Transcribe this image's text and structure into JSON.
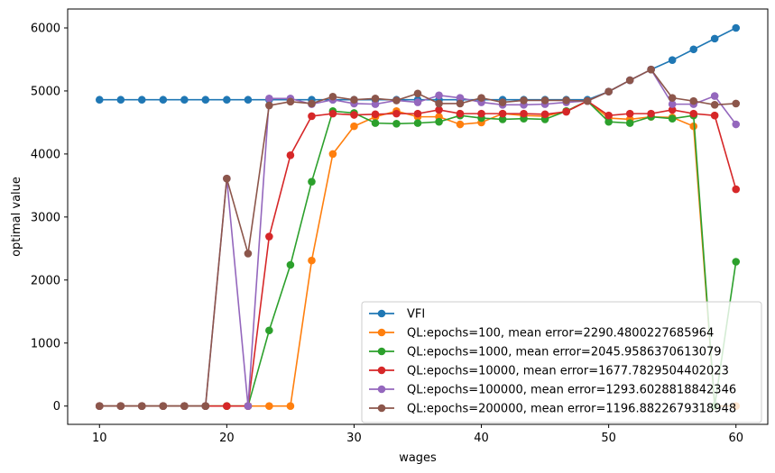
{
  "chart_data": {
    "type": "line",
    "title": "",
    "xlabel": "wages",
    "ylabel": "optimal value",
    "xlim": [
      7.5,
      62.5
    ],
    "ylim": [
      -290,
      6300
    ],
    "xticks": [
      10,
      20,
      30,
      40,
      50,
      60
    ],
    "xtick_labels": [
      "10",
      "20",
      "30",
      "40",
      "50",
      "60"
    ],
    "yticks": [
      0,
      1000,
      2000,
      3000,
      4000,
      5000,
      6000
    ],
    "ytick_labels": [
      "0",
      "1000",
      "2000",
      "3000",
      "4000",
      "5000",
      "6000"
    ],
    "grid": false,
    "legend_position": "lower-right",
    "x": [
      10.0,
      11.67,
      13.33,
      15.0,
      16.67,
      18.33,
      20.0,
      21.67,
      23.33,
      25.0,
      26.67,
      28.33,
      30.0,
      31.67,
      33.33,
      35.0,
      36.67,
      38.33,
      40.0,
      41.67,
      43.33,
      45.0,
      46.67,
      48.33,
      50.0,
      51.67,
      53.33,
      55.0,
      56.67,
      58.33,
      60.0
    ],
    "series": [
      {
        "name": "VFI",
        "color": "#1f77b4",
        "values": [
          4860,
          4860,
          4860,
          4860,
          4860,
          4860,
          4860,
          4860,
          4860,
          4860,
          4860,
          4860,
          4860,
          4860,
          4860,
          4860,
          4860,
          4860,
          4860,
          4860,
          4860,
          4860,
          4860,
          4860,
          4990,
          5170,
          5340,
          5490,
          5660,
          5830,
          6000
        ]
      },
      {
        "name": "QL:epochs=100, mean error=2290.4800227685964",
        "color": "#ff7f0e",
        "values": [
          0,
          0,
          0,
          0,
          0,
          0,
          0,
          0,
          0,
          0,
          2310,
          4000,
          4440,
          4590,
          4680,
          4590,
          4590,
          4470,
          4500,
          4640,
          4610,
          4600,
          4680,
          4840,
          4570,
          4550,
          4590,
          4580,
          4440,
          0,
          0
        ]
      },
      {
        "name": "QL:epochs=1000, mean error=2045.9586370613079",
        "color": "#2ca02c",
        "values": [
          0,
          0,
          0,
          0,
          0,
          0,
          0,
          0,
          1200,
          2240,
          3560,
          4680,
          4650,
          4490,
          4480,
          4490,
          4510,
          4610,
          4570,
          4550,
          4560,
          4550,
          4680,
          4840,
          4510,
          4490,
          4590,
          4560,
          4610,
          0,
          2290
        ]
      },
      {
        "name": "QL:epochs=10000, mean error=1677.7829504402023",
        "color": "#d62728",
        "values": [
          0,
          0,
          0,
          0,
          0,
          0,
          0,
          0,
          2690,
          3980,
          4600,
          4640,
          4620,
          4630,
          4640,
          4640,
          4700,
          4640,
          4640,
          4640,
          4640,
          4630,
          4670,
          4840,
          4610,
          4640,
          4640,
          4700,
          4640,
          4610,
          3440
        ]
      },
      {
        "name": "QL:epochs=100000, mean error=1293.6028818842346",
        "color": "#9467bd",
        "values": [
          0,
          0,
          0,
          0,
          0,
          0,
          3610,
          0,
          4880,
          4880,
          4790,
          4860,
          4800,
          4790,
          4850,
          4820,
          4930,
          4890,
          4820,
          4780,
          4780,
          4790,
          4820,
          4840,
          4990,
          5170,
          5340,
          4790,
          4790,
          4920,
          4470
        ]
      },
      {
        "name": "QL:epochs=200000, mean error=1196.8822679318948",
        "color": "#8c564b",
        "values": [
          0,
          0,
          0,
          0,
          0,
          0,
          3610,
          2420,
          4770,
          4830,
          4800,
          4910,
          4860,
          4880,
          4850,
          4960,
          4800,
          4800,
          4890,
          4820,
          4850,
          4850,
          4850,
          4840,
          4990,
          5170,
          5340,
          4890,
          4840,
          4780,
          4800
        ]
      }
    ]
  }
}
